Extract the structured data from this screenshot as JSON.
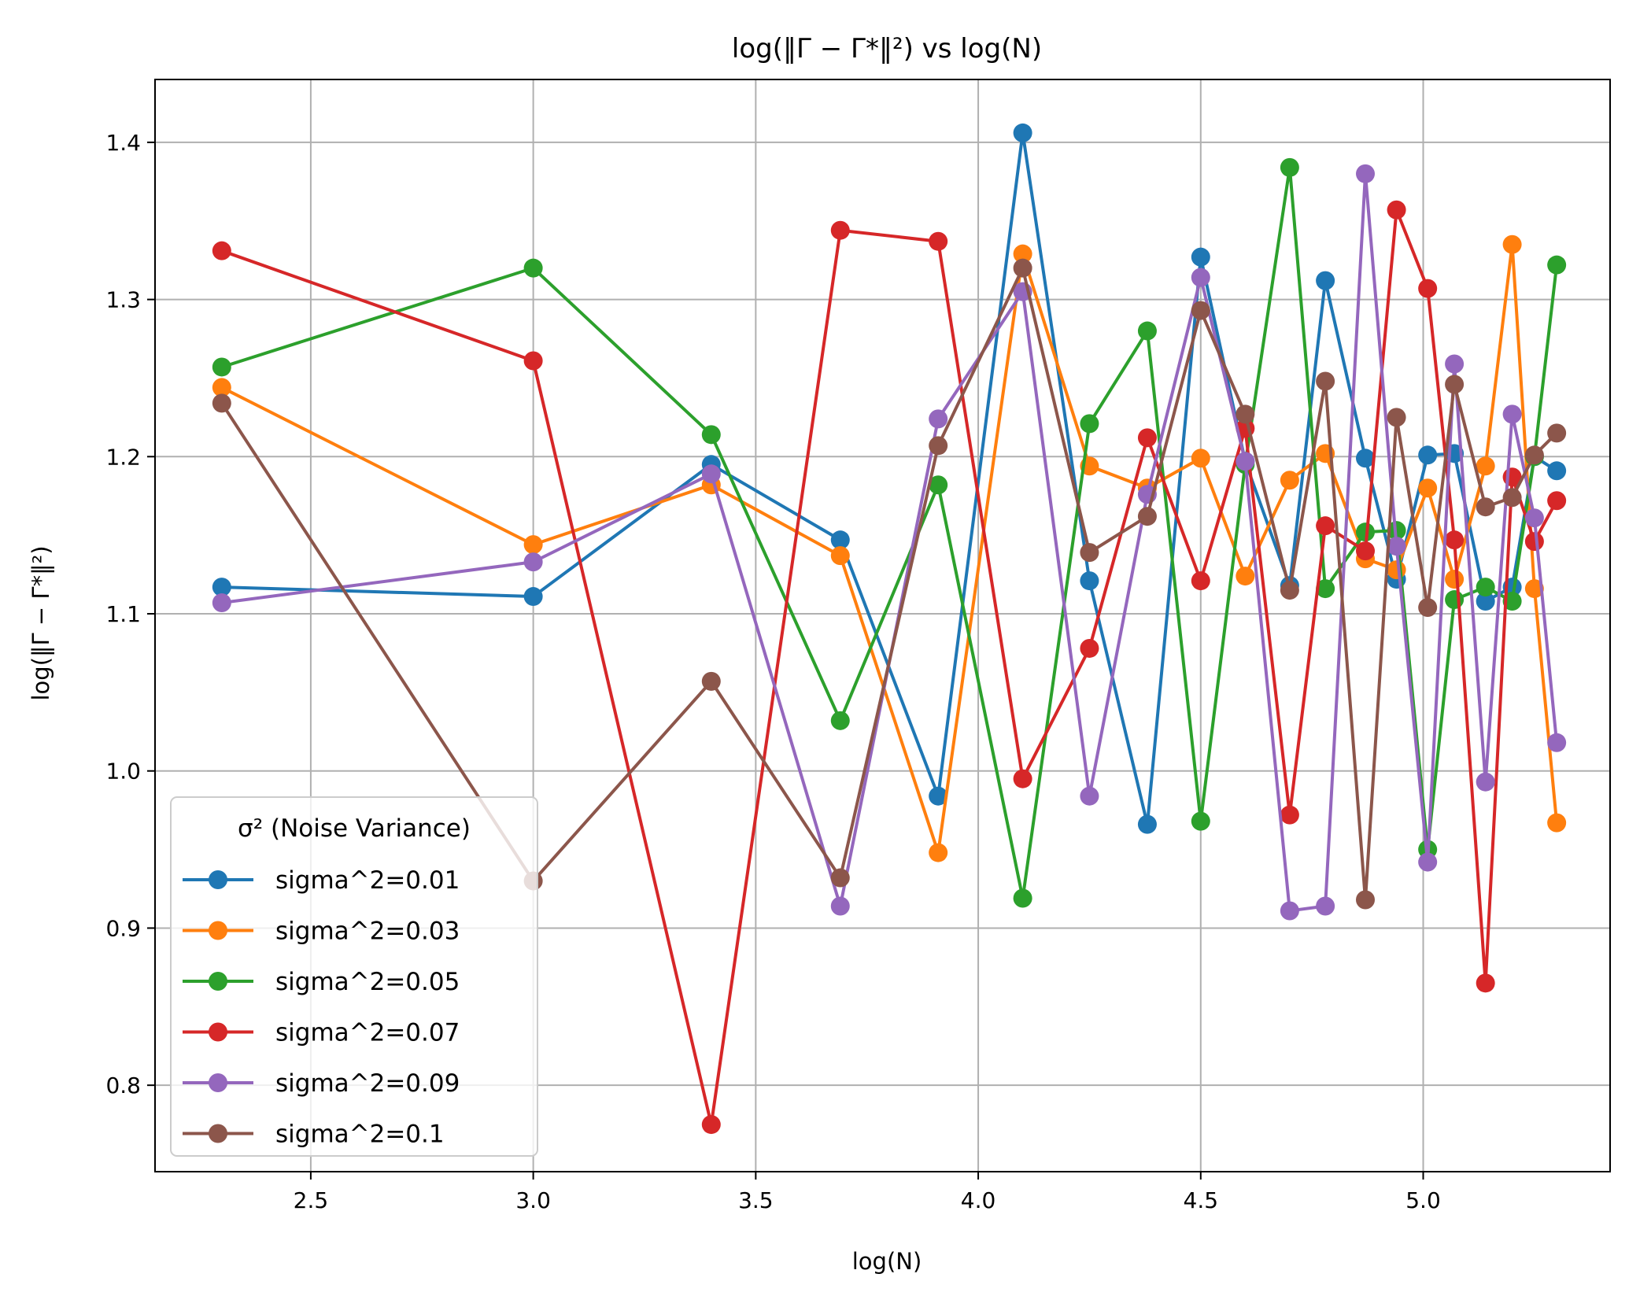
{
  "chart_data": {
    "type": "line",
    "title": "log(‖Γ − Γ*‖²) vs log(N)",
    "xlabel": "log(N)",
    "ylabel": "log(‖Γ − Γ*‖²)",
    "xlim": [
      2.15,
      5.42
    ],
    "ylim": [
      0.745,
      1.44
    ],
    "xticks": [
      2.5,
      3.0,
      3.5,
      4.0,
      4.5,
      5.0
    ],
    "xtick_labels": [
      "2.5",
      "3.0",
      "3.5",
      "4.0",
      "4.5",
      "5.0"
    ],
    "yticks": [
      0.8,
      0.9,
      1.0,
      1.1,
      1.2,
      1.3,
      1.4
    ],
    "ytick_labels": [
      "0.8",
      "0.9",
      "1.0",
      "1.1",
      "1.2",
      "1.3",
      "1.4"
    ],
    "grid": true,
    "legend_title": "σ² (Noise Variance)",
    "legend_position": "lower-left",
    "x": [
      2.3,
      3.0,
      3.4,
      3.69,
      3.91,
      4.1,
      4.25,
      4.38,
      4.5,
      4.6,
      4.7,
      4.78,
      4.87,
      4.94,
      5.01,
      5.07,
      5.14,
      5.2,
      5.25,
      5.3
    ],
    "series": [
      {
        "name": "sigma^2=0.01",
        "color": "#1f77b4",
        "values": [
          1.117,
          1.111,
          1.195,
          1.147,
          0.984,
          1.406,
          1.121,
          0.966,
          1.327,
          1.197,
          1.118,
          1.312,
          1.199,
          1.122,
          1.201,
          1.202,
          1.108,
          1.117,
          1.2,
          1.191
        ]
      },
      {
        "name": "sigma^2=0.03",
        "color": "#ff7f0e",
        "values": [
          1.244,
          1.144,
          1.182,
          1.137,
          0.948,
          1.329,
          1.194,
          1.18,
          1.199,
          1.124,
          1.185,
          1.202,
          1.135,
          1.128,
          1.18,
          1.122,
          1.194,
          1.335,
          1.116,
          0.967
        ]
      },
      {
        "name": "sigma^2=0.05",
        "color": "#2ca02c",
        "values": [
          1.257,
          1.32,
          1.214,
          1.032,
          1.182,
          0.919,
          1.221,
          1.28,
          0.968,
          1.195,
          1.384,
          1.116,
          1.152,
          1.153,
          0.95,
          1.109,
          1.117,
          1.108,
          1.2,
          1.322
        ]
      },
      {
        "name": "sigma^2=0.07",
        "color": "#d62728",
        "values": [
          1.331,
          1.261,
          0.775,
          1.344,
          1.337,
          0.995,
          1.078,
          1.212,
          1.121,
          1.218,
          0.972,
          1.156,
          1.14,
          1.357,
          1.307,
          1.147,
          0.865,
          1.187,
          1.146,
          1.172
        ]
      },
      {
        "name": "sigma^2=0.09",
        "color": "#9467bd",
        "values": [
          1.107,
          1.133,
          1.189,
          0.914,
          1.224,
          1.305,
          0.984,
          1.176,
          1.314,
          1.197,
          0.911,
          0.914,
          1.38,
          1.143,
          0.942,
          1.259,
          0.993,
          1.227,
          1.161,
          1.018
        ]
      },
      {
        "name": "sigma^2=0.1",
        "color": "#8c564b",
        "values": [
          1.234,
          0.93,
          1.057,
          0.932,
          1.207,
          1.32,
          1.139,
          1.162,
          1.293,
          1.227,
          1.115,
          1.248,
          0.918,
          1.225,
          1.104,
          1.246,
          1.168,
          1.174,
          1.201,
          1.215
        ]
      }
    ]
  }
}
